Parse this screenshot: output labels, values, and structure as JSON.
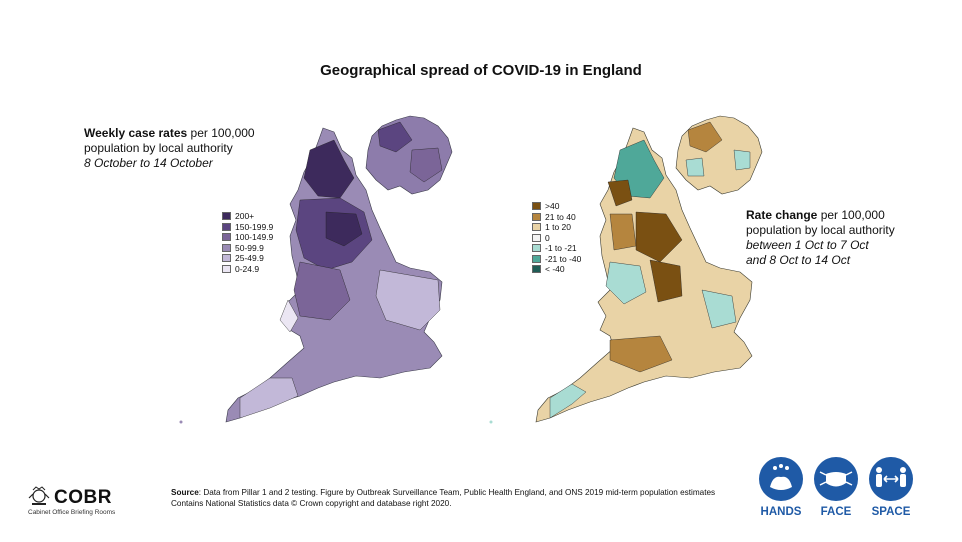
{
  "title": "Geographical spread of COVID-19 in England",
  "left_panel": {
    "heading_bold": "Weekly case rates",
    "heading_rest": " per 100,000",
    "line2": "population by local authority",
    "line3_italic": "8 October to 14 October",
    "legend": [
      {
        "label": "200+",
        "color": "#3d2a5c"
      },
      {
        "label": "150-199.9",
        "color": "#5b4580"
      },
      {
        "label": "100-149.9",
        "color": "#7b6598"
      },
      {
        "label": "50-99.9",
        "color": "#9a8bb5"
      },
      {
        "label": "25-49.9",
        "color": "#c2b8d8"
      },
      {
        "label": "0-24.9",
        "color": "#ebe6f3"
      }
    ]
  },
  "right_panel": {
    "heading_bold": "Rate change",
    "heading_rest": " per 100,000",
    "line2": "population by local authority",
    "line3_italic": "between 1 Oct to 7 Oct",
    "line4_italic": "and 8 Oct to 14 Oct",
    "legend": [
      {
        "label": ">40",
        "color": "#7a5012"
      },
      {
        "label": "21 to 40",
        "color": "#b5853e"
      },
      {
        "label": "1 to 20",
        "color": "#e9d3a6"
      },
      {
        "label": "0",
        "color": "#f3f3f3"
      },
      {
        "label": "-1 to -21",
        "color": "#a9dcd3"
      },
      {
        "label": "-21 to -40",
        "color": "#4fa899"
      },
      {
        "label": "< -40",
        "color": "#1f5c55"
      }
    ]
  },
  "footer": {
    "logo_text": "COBR",
    "logo_sub": "Cabinet Office Briefing Rooms",
    "source_bold": "Source",
    "source_rest": ": Data from Pillar 1 and 2 testing. Figure by Outbreak Surveillance Team, Public Health England, and ONS 2019 mid-term population estimates",
    "source_line2": "Contains National Statistics data © Crown copyright and database right 2020.",
    "badges": [
      {
        "label": "HANDS",
        "icon": "hands-washing-icon"
      },
      {
        "label": "FACE",
        "icon": "face-mask-icon"
      },
      {
        "label": "SPACE",
        "icon": "distance-icon"
      }
    ]
  }
}
